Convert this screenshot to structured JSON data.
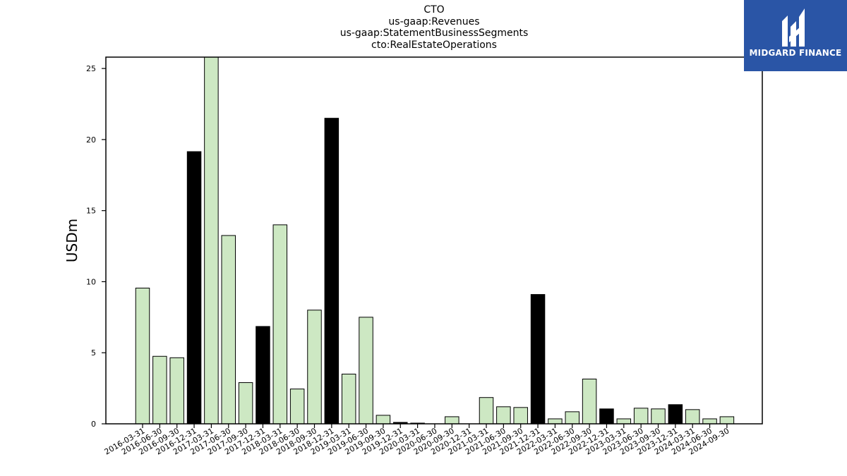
{
  "title_lines": [
    "CTO",
    "us-gaap:Revenues",
    "us-gaap:StatementBusinessSegments",
    "cto:RealEstateOperations"
  ],
  "logo": {
    "text": "MIDGARD FINANCE",
    "bg_color": "#2a55a6",
    "icon": "midgard-logo-icon"
  },
  "chart_data": {
    "type": "bar",
    "title": "CTO",
    "ylabel": "USDm",
    "xlabel": "",
    "ylim": [
      0,
      25.8
    ],
    "yticks": [
      0,
      5,
      10,
      15,
      20,
      25
    ],
    "grid": false,
    "colors": {
      "default": "#cde8c3",
      "highlight": "#000000",
      "edge": "#000000"
    },
    "categories": [
      "2016-03-31",
      "2016-06-30",
      "2016-09-30",
      "2016-12-31",
      "2017-03-31",
      "2017-06-30",
      "2017-09-30",
      "2017-12-31",
      "2018-03-31",
      "2018-06-30",
      "2018-09-30",
      "2018-12-31",
      "2019-03-31",
      "2019-06-30",
      "2019-09-30",
      "2019-12-31",
      "2020-03-31",
      "2020-06-30",
      "2020-09-30",
      "2020-12-31",
      "2021-03-31",
      "2021-06-30",
      "2021-09-30",
      "2021-12-31",
      "2022-03-31",
      "2022-06-30",
      "2022-09-30",
      "2022-12-31",
      "2023-03-31",
      "2023-06-30",
      "2023-09-30",
      "2023-12-31",
      "2024-03-31",
      "2024-06-30",
      "2024-09-30"
    ],
    "values": [
      9.55,
      4.75,
      4.65,
      19.15,
      26.5,
      13.25,
      2.9,
      6.85,
      14.0,
      2.45,
      8.0,
      21.5,
      3.5,
      7.5,
      0.6,
      0.1,
      0.05,
      0.0,
      0.5,
      0.0,
      1.85,
      1.2,
      1.15,
      9.1,
      0.35,
      0.85,
      3.15,
      1.05,
      0.35,
      1.1,
      1.05,
      1.35,
      1.0,
      0.35,
      0.5
    ],
    "highlight": [
      false,
      false,
      false,
      true,
      false,
      false,
      false,
      true,
      false,
      false,
      false,
      true,
      false,
      false,
      false,
      true,
      false,
      false,
      false,
      true,
      false,
      false,
      false,
      true,
      false,
      false,
      false,
      true,
      false,
      false,
      false,
      true,
      false,
      false,
      false
    ]
  }
}
